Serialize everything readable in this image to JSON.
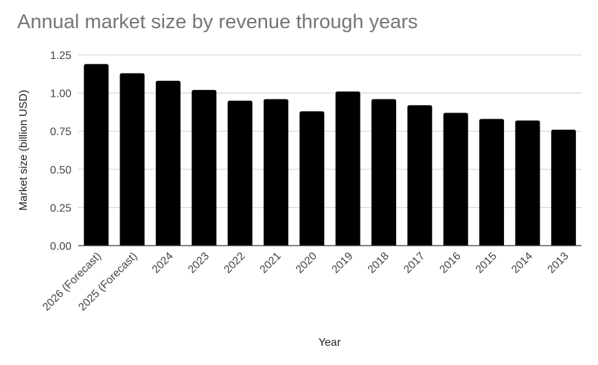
{
  "chart_data": {
    "type": "bar",
    "title": "Annual market size by revenue through years",
    "xlabel": "Year",
    "ylabel": "Market size (billion USD)",
    "categories": [
      "2026 (Forecast)",
      "2025 (Forecast)",
      "2024",
      "2023",
      "2022",
      "2021",
      "2020",
      "2019",
      "2018",
      "2017",
      "2016",
      "2015",
      "2014",
      "2013"
    ],
    "values": [
      1.19,
      1.13,
      1.08,
      1.02,
      0.95,
      0.96,
      0.88,
      1.01,
      0.96,
      0.92,
      0.87,
      0.83,
      0.82,
      0.76
    ],
    "ylim": [
      0,
      1.25
    ],
    "yticks": [
      "0.00",
      "0.25",
      "0.50",
      "0.75",
      "1.00",
      "1.25"
    ],
    "grid": true,
    "legend": "none",
    "colors": {
      "bar": "#000000",
      "grid": "#cccccc",
      "axis": "#333333",
      "title": "#757575"
    }
  }
}
